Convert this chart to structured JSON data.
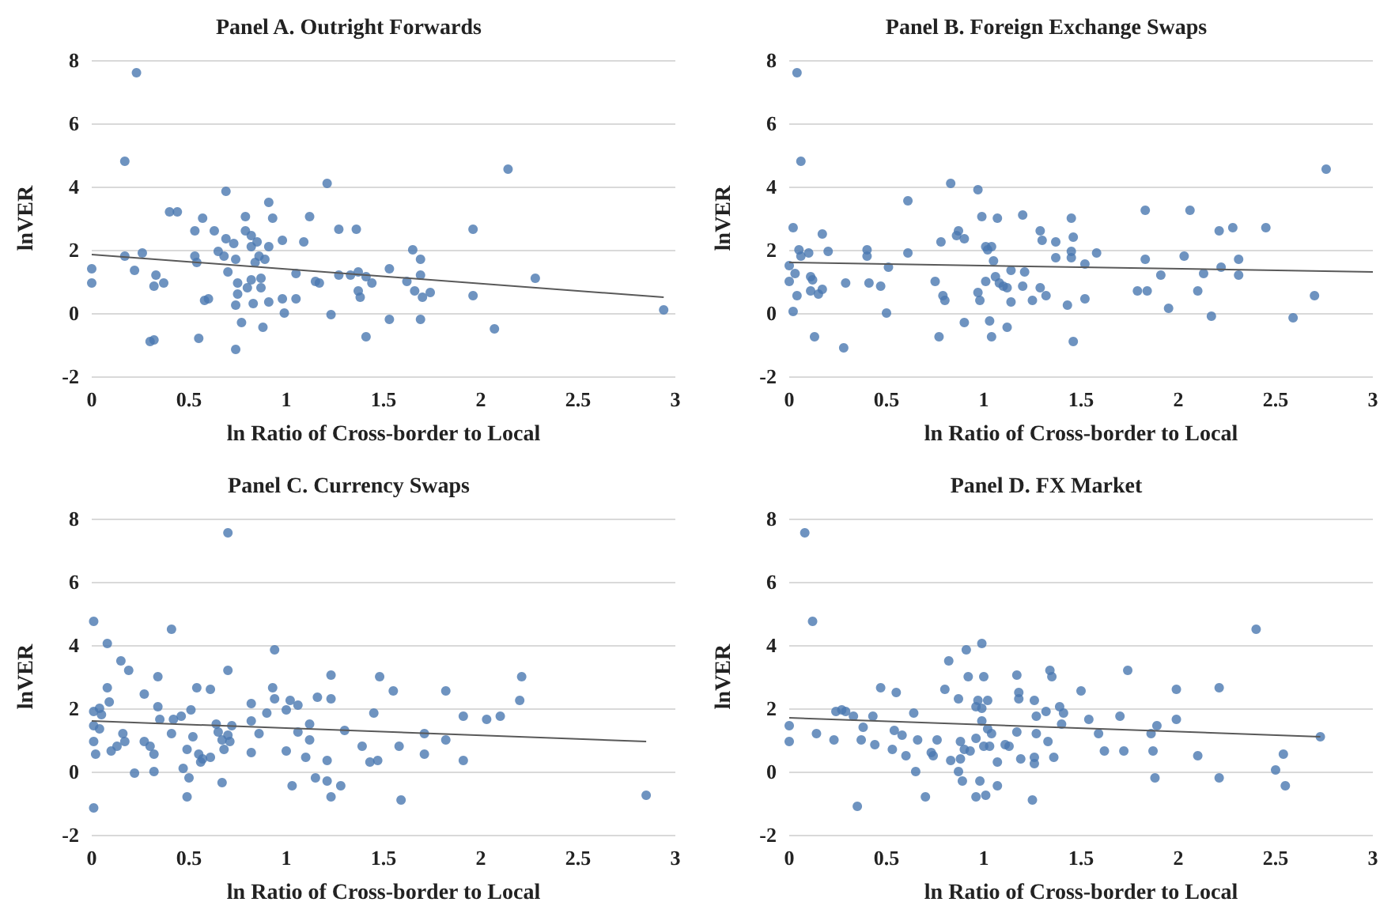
{
  "chart_data": [
    {
      "type": "scatter",
      "title": "Panel A. Outright Forwards",
      "xlabel": "ln Ratio of Cross-border to Local",
      "ylabel": "lnVER",
      "xlim": [
        0,
        3
      ],
      "ylim": [
        -2,
        8
      ],
      "xticks": [
        0,
        0.5,
        1,
        1.5,
        2,
        2.5,
        3
      ],
      "yticks": [
        -2,
        0,
        2,
        4,
        6,
        8
      ],
      "grid": "y",
      "series": [
        {
          "marker": "circle",
          "color": "#4a78b0",
          "x": [
            0,
            0,
            0.23,
            0.17,
            0.17,
            0.26,
            0.22,
            0.3,
            0.32,
            0.32,
            0.33,
            0.37,
            0.4,
            0.44,
            0.53,
            0.53,
            0.54,
            0.55,
            0.57,
            0.58,
            0.6,
            0.63,
            0.65,
            0.68,
            0.69,
            0.69,
            0.7,
            0.73,
            0.74,
            0.75,
            0.74,
            0.74,
            0.75,
            0.77,
            0.79,
            0.79,
            0.8,
            0.82,
            0.82,
            0.82,
            0.83,
            0.84,
            0.85,
            0.86,
            0.87,
            0.87,
            0.88,
            0.89,
            0.91,
            0.91,
            0.91,
            0.93,
            0.98,
            0.98,
            0.99,
            1.05,
            1.05,
            1.09,
            1.12,
            1.15,
            1.17,
            1.21,
            1.23,
            1.27,
            1.27,
            1.33,
            1.36,
            1.37,
            1.37,
            1.38,
            1.41,
            1.41,
            1.44,
            1.53,
            1.53,
            1.62,
            1.65,
            1.66,
            1.69,
            1.69,
            1.69,
            1.7,
            1.74,
            1.96,
            1.96,
            2.07,
            2.14,
            2.28,
            2.94
          ],
          "values": [
            1.4,
            0.95,
            7.6,
            4.8,
            1.8,
            1.9,
            1.35,
            -0.9,
            -0.85,
            0.85,
            1.2,
            0.95,
            3.2,
            3.2,
            1.8,
            2.6,
            1.6,
            -0.8,
            3.0,
            0.4,
            0.45,
            2.6,
            1.95,
            1.8,
            3.85,
            2.35,
            1.3,
            2.2,
            1.7,
            0.6,
            0.25,
            -1.15,
            0.95,
            -0.3,
            3.05,
            2.6,
            0.8,
            2.45,
            2.1,
            1.05,
            0.3,
            1.6,
            2.25,
            1.8,
            1.1,
            0.8,
            -0.45,
            1.7,
            3.5,
            2.1,
            0.35,
            3.0,
            2.3,
            0.45,
            0.0,
            1.25,
            0.45,
            2.25,
            3.05,
            1.0,
            0.95,
            4.1,
            -0.05,
            2.65,
            1.2,
            1.2,
            2.65,
            1.3,
            0.7,
            0.5,
            1.15,
            -0.75,
            0.95,
            1.4,
            -0.2,
            1.0,
            2.0,
            0.7,
            1.7,
            1.2,
            -0.2,
            0.5,
            0.65,
            2.65,
            0.55,
            -0.5,
            4.55,
            1.1,
            0.1
          ]
        },
        {
          "type": "line",
          "marker": "none",
          "color": "#595959",
          "x": [
            0,
            2.94
          ],
          "values": [
            1.85,
            0.5
          ]
        }
      ]
    },
    {
      "type": "scatter",
      "title": "Panel B. Foreign Exchange Swaps",
      "xlabel": "ln Ratio of Cross-border to Local",
      "ylabel": "lnVER",
      "xlim": [
        0,
        3
      ],
      "ylim": [
        -2,
        8
      ],
      "xticks": [
        0,
        0.5,
        1,
        1.5,
        2,
        2.5,
        3
      ],
      "yticks": [
        -2,
        0,
        2,
        4,
        6,
        8
      ],
      "grid": "y",
      "series": [
        {
          "marker": "circle",
          "color": "#4a78b0",
          "x": [
            0.04,
            0.06,
            0.02,
            0,
            0,
            0.03,
            0.02,
            0.04,
            0.05,
            0.06,
            0.1,
            0.11,
            0.12,
            0.11,
            0.13,
            0.15,
            0.17,
            0.17,
            0.2,
            0.29,
            0.28,
            0.4,
            0.4,
            0.41,
            0.47,
            0.5,
            0.51,
            0.61,
            0.61,
            0.75,
            0.78,
            0.77,
            0.79,
            0.8,
            0.83,
            0.86,
            0.87,
            0.9,
            0.9,
            0.97,
            0.99,
            0.97,
            0.98,
            1.01,
            1.02,
            1.01,
            1.03,
            1.04,
            1.04,
            1.05,
            1.06,
            1.07,
            1.08,
            1.1,
            1.12,
            1.12,
            1.14,
            1.14,
            1.2,
            1.2,
            1.21,
            1.25,
            1.29,
            1.29,
            1.3,
            1.32,
            1.37,
            1.37,
            1.45,
            1.46,
            1.45,
            1.45,
            1.43,
            1.46,
            1.52,
            1.52,
            1.58,
            1.79,
            1.83,
            1.83,
            1.84,
            1.91,
            1.95,
            2.03,
            2.06,
            2.1,
            2.13,
            2.17,
            2.21,
            2.22,
            2.28,
            2.31,
            2.31,
            2.45,
            2.59,
            2.7,
            2.76
          ],
          "values": [
            7.6,
            4.8,
            2.7,
            1.5,
            1.0,
            1.25,
            0.05,
            0.55,
            2.0,
            1.8,
            1.9,
            1.15,
            1.05,
            0.7,
            -0.75,
            0.6,
            2.5,
            0.75,
            1.95,
            0.95,
            -1.1,
            2.0,
            1.8,
            0.95,
            0.85,
            0.0,
            1.45,
            3.55,
            1.9,
            1.0,
            2.25,
            -0.75,
            0.55,
            0.4,
            4.1,
            2.45,
            2.6,
            2.35,
            -0.3,
            3.9,
            3.05,
            0.65,
            0.4,
            2.1,
            2.0,
            1.0,
            -0.25,
            -0.75,
            2.1,
            1.65,
            1.15,
            3.0,
            0.95,
            0.85,
            0.8,
            -0.45,
            1.35,
            0.35,
            3.1,
            0.85,
            1.3,
            0.4,
            2.6,
            0.8,
            2.3,
            0.55,
            2.25,
            1.75,
            3.0,
            2.4,
            1.95,
            1.75,
            0.25,
            -0.9,
            1.55,
            0.45,
            1.9,
            0.7,
            3.25,
            1.7,
            0.7,
            1.2,
            0.15,
            1.8,
            3.25,
            0.7,
            1.25,
            -0.1,
            2.6,
            1.45,
            2.7,
            1.7,
            1.2,
            2.7,
            -0.15,
            0.55,
            4.55
          ]
        },
        {
          "type": "line",
          "marker": "none",
          "color": "#595959",
          "x": [
            0,
            3
          ],
          "values": [
            1.6,
            1.3
          ]
        }
      ]
    },
    {
      "type": "scatter",
      "title": "Panel C. Currency Swaps",
      "xlabel": "ln Ratio of Cross-border to Local",
      "ylabel": "lnVER",
      "xlim": [
        0,
        3
      ],
      "ylim": [
        -2,
        8
      ],
      "xticks": [
        0,
        0.5,
        1,
        1.5,
        2,
        2.5,
        3
      ],
      "yticks": [
        -2,
        0,
        2,
        4,
        6,
        8
      ],
      "grid": "y",
      "series": [
        {
          "marker": "circle",
          "color": "#4a78b0",
          "x": [
            0.01,
            0.01,
            0.01,
            0.01,
            0.01,
            0.02,
            0.04,
            0.05,
            0.04,
            0.08,
            0.08,
            0.09,
            0.1,
            0.13,
            0.15,
            0.16,
            0.17,
            0.19,
            0.22,
            0.27,
            0.27,
            0.3,
            0.32,
            0.32,
            0.34,
            0.34,
            0.35,
            0.41,
            0.41,
            0.42,
            0.46,
            0.47,
            0.49,
            0.49,
            0.5,
            0.51,
            0.52,
            0.54,
            0.55,
            0.56,
            0.57,
            0.61,
            0.61,
            0.64,
            0.65,
            0.67,
            0.67,
            0.68,
            0.7,
            0.7,
            0.7,
            0.72,
            0.71,
            0.82,
            0.82,
            0.82,
            0.86,
            0.9,
            0.93,
            0.94,
            0.94,
            1.0,
            1.0,
            1.02,
            1.03,
            1.06,
            1.06,
            1.1,
            1.12,
            1.12,
            1.16,
            1.15,
            1.21,
            1.21,
            1.23,
            1.23,
            1.23,
            1.28,
            1.3,
            1.39,
            1.43,
            1.45,
            1.47,
            1.48,
            1.55,
            1.58,
            1.59,
            1.71,
            1.71,
            1.82,
            1.82,
            1.91,
            1.91,
            2.03,
            2.1,
            2.2,
            2.21,
            2.85
          ],
          "values": [
            4.75,
            1.9,
            1.45,
            0.95,
            -1.15,
            0.55,
            2.0,
            1.8,
            1.35,
            4.05,
            2.65,
            2.2,
            0.65,
            0.8,
            3.5,
            1.2,
            0.95,
            3.2,
            -0.05,
            2.45,
            0.95,
            0.8,
            0.55,
            0.0,
            3.0,
            2.05,
            1.65,
            1.2,
            4.5,
            1.65,
            1.75,
            0.1,
            -0.8,
            0.7,
            -0.2,
            1.95,
            1.1,
            2.65,
            0.55,
            0.3,
            0.4,
            2.6,
            0.45,
            1.5,
            1.25,
            1.0,
            -0.35,
            0.7,
            3.2,
            7.55,
            1.15,
            1.45,
            0.95,
            2.15,
            1.6,
            0.6,
            1.2,
            1.85,
            2.65,
            2.3,
            3.85,
            0.65,
            1.95,
            2.25,
            -0.45,
            2.1,
            1.25,
            0.45,
            1.0,
            1.5,
            2.35,
            -0.2,
            0.35,
            -0.3,
            3.05,
            2.3,
            -0.8,
            -0.45,
            1.3,
            0.8,
            0.3,
            1.85,
            0.35,
            3.0,
            2.55,
            0.8,
            -0.9,
            1.2,
            0.55,
            2.55,
            1.0,
            1.75,
            0.35,
            1.65,
            1.75,
            2.25,
            3.0,
            -0.75
          ]
        },
        {
          "type": "line",
          "marker": "none",
          "color": "#595959",
          "x": [
            0,
            2.85
          ],
          "values": [
            1.6,
            0.95
          ]
        }
      ]
    },
    {
      "type": "scatter",
      "title": "Panel D. FX Market",
      "xlabel": "ln Ratio of Cross-border to Local",
      "ylabel": "lnVER",
      "xlim": [
        0,
        3
      ],
      "ylim": [
        -2,
        8
      ],
      "xticks": [
        0,
        0.5,
        1,
        1.5,
        2,
        2.5,
        3
      ],
      "yticks": [
        -2,
        0,
        2,
        4,
        6,
        8
      ],
      "grid": "y",
      "series": [
        {
          "marker": "circle",
          "color": "#4a78b0",
          "x": [
            0.08,
            0.12,
            0,
            0,
            0.14,
            0.23,
            0.24,
            0.27,
            0.29,
            0.33,
            0.35,
            0.37,
            0.38,
            0.43,
            0.44,
            0.47,
            0.53,
            0.54,
            0.55,
            0.58,
            0.6,
            0.64,
            0.65,
            0.66,
            0.7,
            0.73,
            0.74,
            0.76,
            0.8,
            0.82,
            0.83,
            0.87,
            0.87,
            0.88,
            0.88,
            0.89,
            0.9,
            0.91,
            0.92,
            0.93,
            0.96,
            0.96,
            0.96,
            0.97,
            0.98,
            0.99,
            0.99,
            0.99,
            1.0,
            1.0,
            1.01,
            1.02,
            1.02,
            1.03,
            1.04,
            1.07,
            1.07,
            1.11,
            1.13,
            1.17,
            1.18,
            1.18,
            1.17,
            1.19,
            1.26,
            1.26,
            1.26,
            1.25,
            1.27,
            1.27,
            1.32,
            1.33,
            1.34,
            1.35,
            1.36,
            1.39,
            1.4,
            1.41,
            1.5,
            1.54,
            1.59,
            1.62,
            1.7,
            1.72,
            1.74,
            1.86,
            1.87,
            1.88,
            1.89,
            1.99,
            1.99,
            2.1,
            2.21,
            2.21,
            2.4,
            2.5,
            2.54,
            2.55,
            2.73
          ],
          "values": [
            7.55,
            4.75,
            1.45,
            0.95,
            1.2,
            1.0,
            1.9,
            1.95,
            1.9,
            1.75,
            -1.1,
            1.0,
            1.4,
            1.75,
            0.85,
            2.65,
            0.7,
            1.3,
            2.5,
            1.15,
            0.5,
            1.85,
            0.0,
            1.0,
            -0.8,
            0.6,
            0.5,
            1.0,
            2.6,
            3.5,
            0.35,
            2.3,
            0.0,
            0.95,
            0.4,
            -0.3,
            0.7,
            3.85,
            3.0,
            0.65,
            2.05,
            1.05,
            -0.8,
            2.25,
            -0.3,
            4.05,
            2.0,
            1.6,
            0.8,
            3.0,
            -0.75,
            1.35,
            2.25,
            0.8,
            1.2,
            0.3,
            -0.45,
            0.85,
            0.8,
            3.05,
            2.5,
            2.3,
            1.25,
            0.4,
            2.25,
            0.45,
            0.25,
            -0.9,
            1.2,
            1.75,
            1.9,
            0.95,
            3.2,
            3.0,
            0.45,
            2.05,
            1.5,
            1.85,
            2.55,
            1.65,
            1.2,
            0.65,
            1.75,
            0.65,
            3.2,
            1.2,
            0.65,
            -0.2,
            1.45,
            2.6,
            1.65,
            0.5,
            2.65,
            -0.2,
            4.5,
            0.05,
            0.55,
            -0.45,
            1.1
          ]
        },
        {
          "type": "line",
          "marker": "none",
          "color": "#595959",
          "x": [
            0,
            2.73
          ],
          "values": [
            1.7,
            1.1
          ]
        }
      ]
    }
  ]
}
